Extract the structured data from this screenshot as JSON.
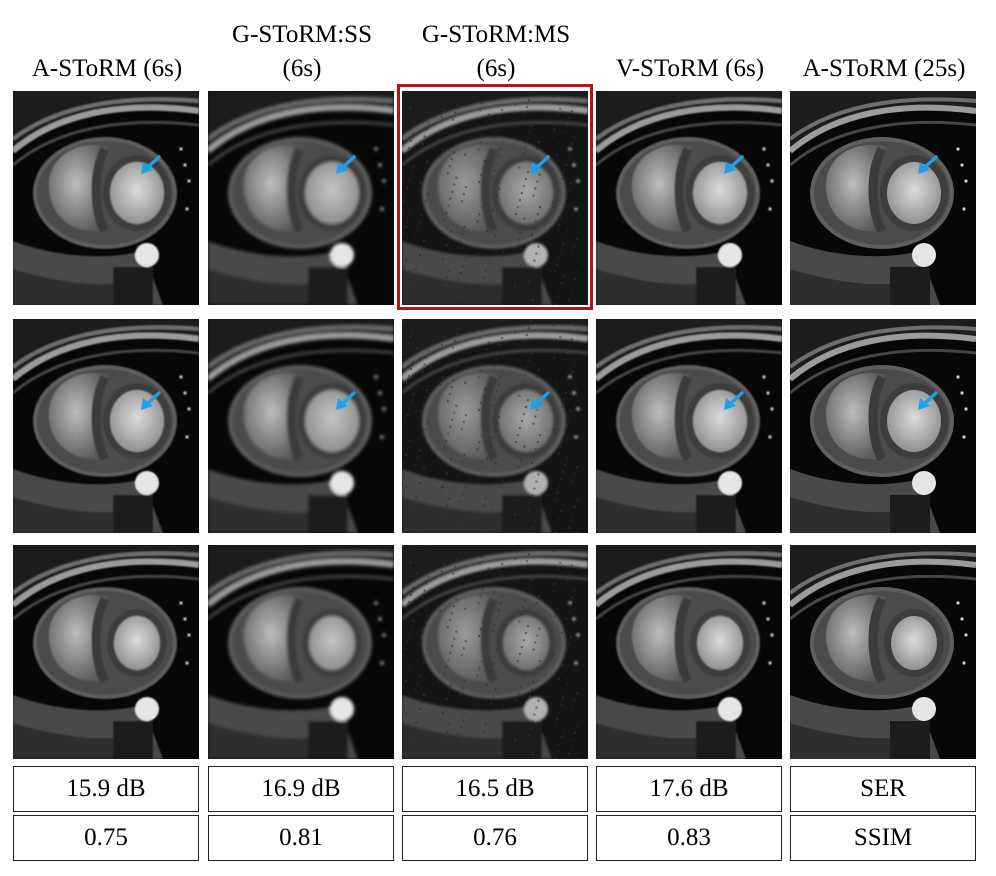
{
  "columns": [
    {
      "header_line1": "A-SToRM (6s)",
      "header_line2": "",
      "ser": "15.9 dB",
      "ssim": "0.75",
      "style": "normal"
    },
    {
      "header_line1": "G-SToRM:SS",
      "header_line2": "(6s)",
      "ser": "16.9 dB",
      "ssim": "0.81",
      "style": "soft"
    },
    {
      "header_line1": "G-SToRM:MS",
      "header_line2": "(6s)",
      "ser": "16.5 dB",
      "ssim": "0.76",
      "style": "noisy"
    },
    {
      "header_line1": "V-SToRM (6s)",
      "header_line2": "",
      "ser": "17.6 dB",
      "ssim": "0.83",
      "style": "normal"
    },
    {
      "header_line1": "A-SToRM (25s)",
      "header_line2": "",
      "ser": "SER",
      "ssim": "SSIM",
      "style": "sharp"
    }
  ],
  "rows": [
    {
      "name": "row-1",
      "arrow": true
    },
    {
      "name": "row-2",
      "arrow": true
    },
    {
      "name": "row-3",
      "arrow": false
    }
  ],
  "highlight": {
    "column": 2,
    "row": 0,
    "color": "#b01818"
  },
  "colors": {
    "arrow": "#1ea0e6",
    "highlight": "#b01818"
  }
}
